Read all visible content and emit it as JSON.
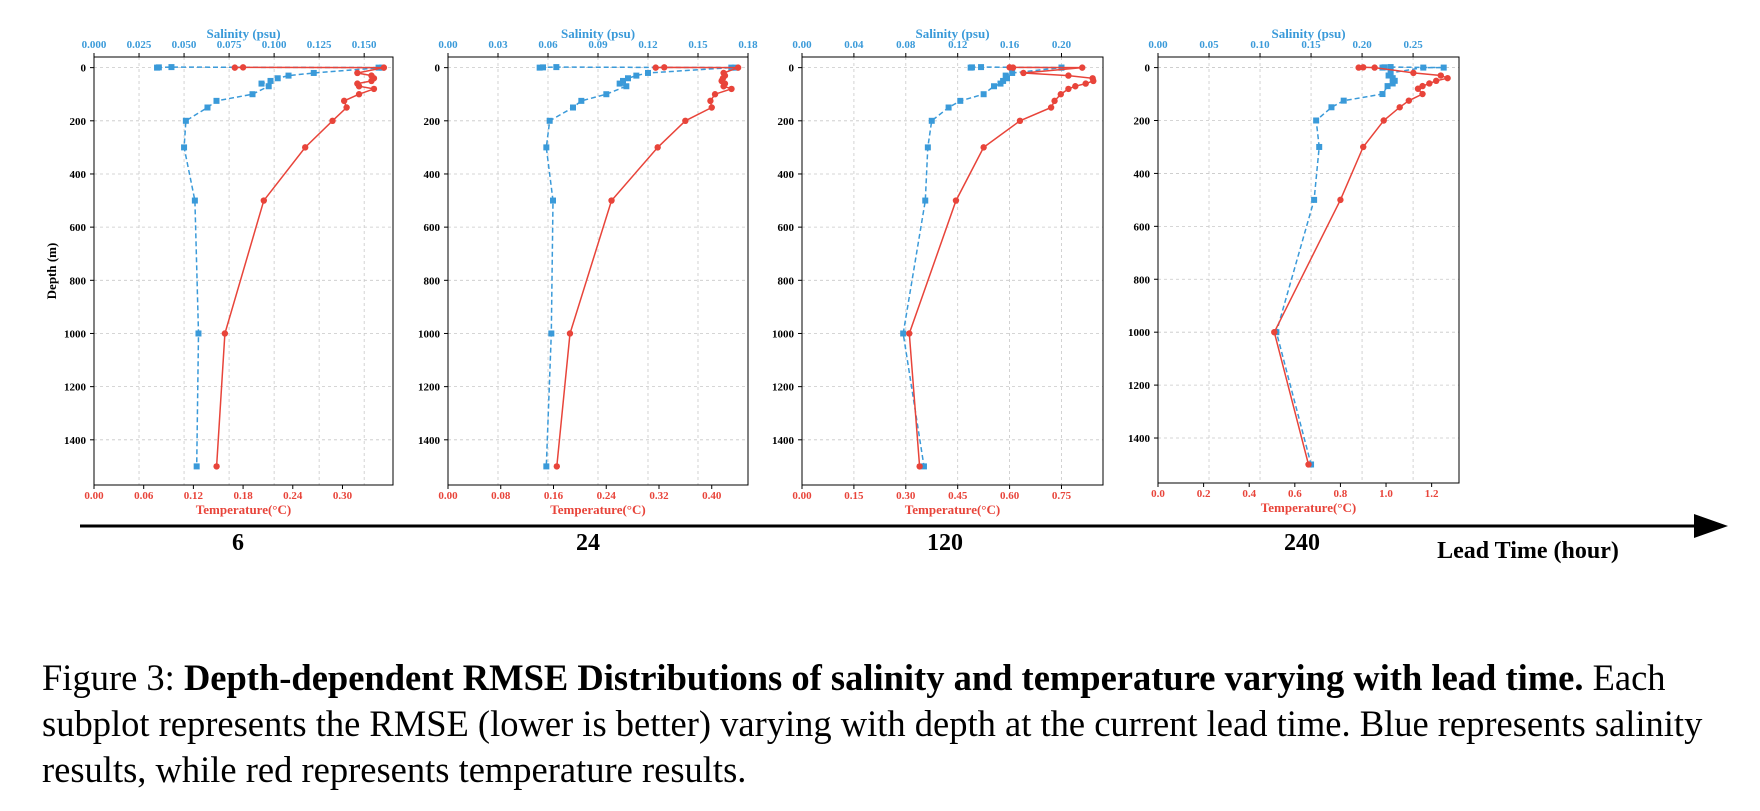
{
  "colors": {
    "salinity": "#3a9ad9",
    "temperature": "#e8443a",
    "axis": "#000000",
    "grid": "#c8c8c8"
  },
  "arrow_label": "Lead Time (hour)",
  "caption": {
    "prefix": "Figure 3: ",
    "bold": "Depth-dependent RMSE Distributions of salinity and temperature varying with lead time.",
    "rest": " Each subplot represents the RMSE (lower is better) varying with depth at the current lead time. Blue represents salinity results, while red represents temperature results."
  },
  "chart_data": [
    {
      "type": "line",
      "lead_time_label": "6",
      "top_axis_label": "Salinity (psu)",
      "bottom_axis_label": "Temperature(°C)",
      "ylabel": "Depth (m)",
      "ylim": [
        1570,
        -40
      ],
      "yticks": [
        0,
        200,
        400,
        600,
        800,
        1000,
        1200,
        1400
      ],
      "grid": true,
      "salinity_xlim": [
        0.0,
        0.166
      ],
      "salinity_ticks": [
        0.0,
        0.025,
        0.05,
        0.075,
        0.1,
        0.125,
        0.15
      ],
      "salinity_tick_labels": [
        "0.000",
        "0.025",
        "0.050",
        "0.075",
        "0.100",
        "0.125",
        "0.150"
      ],
      "temperature_xlim": [
        0.0,
        0.361
      ],
      "temperature_ticks": [
        0.0,
        0.06,
        0.12,
        0.18,
        0.24,
        0.3
      ],
      "temperature_tick_labels": [
        "0.00",
        "0.06",
        "0.12",
        "0.18",
        "0.24",
        "0.30"
      ],
      "series": [
        {
          "name": "Salinity",
          "marker": "square",
          "style": "dashed",
          "points": [
            [
              0.035,
              0
            ],
            [
              0.036,
              -1
            ],
            [
              0.043,
              -2
            ],
            [
              0.158,
              0
            ],
            [
              0.16,
              0
            ],
            [
              0.122,
              20
            ],
            [
              0.108,
              30
            ],
            [
              0.102,
              40
            ],
            [
              0.098,
              50
            ],
            [
              0.093,
              60
            ],
            [
              0.097,
              70
            ],
            [
              0.088,
              100
            ],
            [
              0.068,
              125
            ],
            [
              0.063,
              150
            ],
            [
              0.051,
              200
            ],
            [
              0.05,
              300
            ],
            [
              0.056,
              500
            ],
            [
              0.058,
              1000
            ],
            [
              0.057,
              1500
            ]
          ]
        },
        {
          "name": "Temperature",
          "marker": "circle",
          "style": "solid",
          "points": [
            [
              0.17,
              0
            ],
            [
              0.18,
              -1
            ],
            [
              0.35,
              0
            ],
            [
              0.318,
              20
            ],
            [
              0.335,
              30
            ],
            [
              0.338,
              40
            ],
            [
              0.335,
              50
            ],
            [
              0.318,
              60
            ],
            [
              0.32,
              70
            ],
            [
              0.338,
              80
            ],
            [
              0.32,
              100
            ],
            [
              0.302,
              125
            ],
            [
              0.305,
              150
            ],
            [
              0.288,
              200
            ],
            [
              0.255,
              300
            ],
            [
              0.205,
              500
            ],
            [
              0.158,
              1000
            ],
            [
              0.148,
              1500
            ]
          ]
        }
      ]
    },
    {
      "type": "line",
      "lead_time_label": "24",
      "top_axis_label": "Salinity (psu)",
      "bottom_axis_label": "Temperature(°C)",
      "ylim": [
        1570,
        -40
      ],
      "yticks": [
        0,
        200,
        400,
        600,
        800,
        1000,
        1200,
        1400
      ],
      "grid": true,
      "salinity_xlim": [
        0.0,
        0.18
      ],
      "salinity_ticks": [
        0.0,
        0.03,
        0.06,
        0.09,
        0.12,
        0.15,
        0.18
      ],
      "salinity_tick_labels": [
        "0.00",
        "0.03",
        "0.06",
        "0.09",
        "0.12",
        "0.15",
        "0.18"
      ],
      "temperature_xlim": [
        0.0,
        0.455
      ],
      "temperature_ticks": [
        0.0,
        0.08,
        0.16,
        0.24,
        0.32,
        0.4
      ],
      "temperature_tick_labels": [
        "0.00",
        "0.08",
        "0.16",
        "0.24",
        "0.32",
        "0.40"
      ],
      "series": [
        {
          "name": "Salinity",
          "marker": "square",
          "style": "dashed",
          "points": [
            [
              0.055,
              0
            ],
            [
              0.057,
              -1
            ],
            [
              0.065,
              -2
            ],
            [
              0.172,
              0
            ],
            [
              0.17,
              0
            ],
            [
              0.12,
              20
            ],
            [
              0.113,
              30
            ],
            [
              0.108,
              40
            ],
            [
              0.105,
              50
            ],
            [
              0.103,
              60
            ],
            [
              0.107,
              70
            ],
            [
              0.095,
              100
            ],
            [
              0.08,
              125
            ],
            [
              0.075,
              150
            ],
            [
              0.061,
              200
            ],
            [
              0.059,
              300
            ],
            [
              0.063,
              500
            ],
            [
              0.062,
              1000
            ],
            [
              0.059,
              1500
            ]
          ]
        },
        {
          "name": "Temperature",
          "marker": "circle",
          "style": "solid",
          "points": [
            [
              0.315,
              0
            ],
            [
              0.328,
              -1
            ],
            [
              0.44,
              0
            ],
            [
              0.418,
              20
            ],
            [
              0.42,
              30
            ],
            [
              0.417,
              40
            ],
            [
              0.415,
              50
            ],
            [
              0.42,
              60
            ],
            [
              0.418,
              70
            ],
            [
              0.43,
              80
            ],
            [
              0.405,
              100
            ],
            [
              0.398,
              125
            ],
            [
              0.4,
              150
            ],
            [
              0.36,
              200
            ],
            [
              0.318,
              300
            ],
            [
              0.248,
              500
            ],
            [
              0.185,
              1000
            ],
            [
              0.165,
              1500
            ]
          ]
        }
      ]
    },
    {
      "type": "line",
      "lead_time_label": "120",
      "top_axis_label": "Salinity (psu)",
      "bottom_axis_label": "Temperature(°C)",
      "ylim": [
        1570,
        -40
      ],
      "yticks": [
        0,
        200,
        400,
        600,
        800,
        1000,
        1200,
        1400
      ],
      "grid": true,
      "salinity_xlim": [
        0.0,
        0.232
      ],
      "salinity_ticks": [
        0.0,
        0.04,
        0.08,
        0.12,
        0.16,
        0.2
      ],
      "salinity_tick_labels": [
        "0.00",
        "0.04",
        "0.08",
        "0.12",
        "0.16",
        "0.20"
      ],
      "temperature_xlim": [
        0.0,
        0.87
      ],
      "temperature_ticks": [
        0.0,
        0.15,
        0.3,
        0.45,
        0.6,
        0.75
      ],
      "temperature_tick_labels": [
        "0.00",
        "0.15",
        "0.30",
        "0.45",
        "0.60",
        "0.75"
      ],
      "series": [
        {
          "name": "Salinity",
          "marker": "square",
          "style": "dashed",
          "points": [
            [
              0.13,
              0
            ],
            [
              0.131,
              -1
            ],
            [
              0.138,
              -2
            ],
            [
              0.2,
              0
            ],
            [
              0.2,
              0
            ],
            [
              0.162,
              20
            ],
            [
              0.157,
              30
            ],
            [
              0.158,
              40
            ],
            [
              0.155,
              50
            ],
            [
              0.153,
              60
            ],
            [
              0.148,
              70
            ],
            [
              0.14,
              100
            ],
            [
              0.122,
              125
            ],
            [
              0.113,
              150
            ],
            [
              0.1,
              200
            ],
            [
              0.097,
              300
            ],
            [
              0.095,
              500
            ],
            [
              0.078,
              1000
            ],
            [
              0.094,
              1500
            ]
          ]
        },
        {
          "name": "Temperature",
          "marker": "circle",
          "style": "solid",
          "points": [
            [
              0.61,
              0
            ],
            [
              0.6,
              -1
            ],
            [
              0.81,
              0
            ],
            [
              0.64,
              20
            ],
            [
              0.77,
              30
            ],
            [
              0.84,
              40
            ],
            [
              0.842,
              50
            ],
            [
              0.82,
              60
            ],
            [
              0.79,
              70
            ],
            [
              0.77,
              80
            ],
            [
              0.748,
              100
            ],
            [
              0.73,
              125
            ],
            [
              0.72,
              150
            ],
            [
              0.63,
              200
            ],
            [
              0.525,
              300
            ],
            [
              0.445,
              500
            ],
            [
              0.31,
              1000
            ],
            [
              0.34,
              1500
            ]
          ]
        }
      ]
    },
    {
      "type": "line",
      "lead_time_label": "240",
      "top_axis_label": "Salinity (psu)",
      "bottom_axis_label": "Temperature(°C)",
      "ylim": [
        1570,
        -40
      ],
      "yticks": [
        0,
        200,
        400,
        600,
        800,
        1000,
        1200,
        1400
      ],
      "grid": true,
      "salinity_xlim": [
        0.0,
        0.295
      ],
      "salinity_ticks": [
        0.0,
        0.05,
        0.1,
        0.15,
        0.2,
        0.25
      ],
      "salinity_tick_labels": [
        "0.00",
        "0.05",
        "0.10",
        "0.15",
        "0.20",
        "0.25"
      ],
      "temperature_xlim": [
        0.0,
        1.32
      ],
      "temperature_ticks": [
        0.0,
        0.2,
        0.4,
        0.6,
        0.8,
        1.0,
        1.2
      ],
      "temperature_tick_labels": [
        "0.0",
        "0.2",
        "0.4",
        "0.6",
        "0.8",
        "1.0",
        "1.2"
      ],
      "series": [
        {
          "name": "Salinity",
          "marker": "square",
          "style": "dashed",
          "points": [
            [
              0.22,
              0
            ],
            [
              0.222,
              -1
            ],
            [
              0.228,
              -2
            ],
            [
              0.28,
              0
            ],
            [
              0.26,
              0
            ],
            [
              0.228,
              20
            ],
            [
              0.226,
              30
            ],
            [
              0.23,
              40
            ],
            [
              0.232,
              50
            ],
            [
              0.23,
              60
            ],
            [
              0.225,
              70
            ],
            [
              0.22,
              100
            ],
            [
              0.182,
              125
            ],
            [
              0.17,
              150
            ],
            [
              0.155,
              200
            ],
            [
              0.158,
              300
            ],
            [
              0.153,
              500
            ],
            [
              0.116,
              1000
            ],
            [
              0.15,
              1500
            ]
          ]
        },
        {
          "name": "Temperature",
          "marker": "circle",
          "style": "solid",
          "points": [
            [
              0.88,
              0
            ],
            [
              0.9,
              -1
            ],
            [
              0.95,
              0
            ],
            [
              1.12,
              20
            ],
            [
              1.24,
              30
            ],
            [
              1.27,
              40
            ],
            [
              1.22,
              50
            ],
            [
              1.19,
              60
            ],
            [
              1.16,
              70
            ],
            [
              1.14,
              80
            ],
            [
              1.16,
              100
            ],
            [
              1.1,
              125
            ],
            [
              1.06,
              150
            ],
            [
              0.99,
              200
            ],
            [
              0.9,
              300
            ],
            [
              0.8,
              500
            ],
            [
              0.51,
              1000
            ],
            [
              0.66,
              1500
            ]
          ]
        }
      ]
    }
  ]
}
